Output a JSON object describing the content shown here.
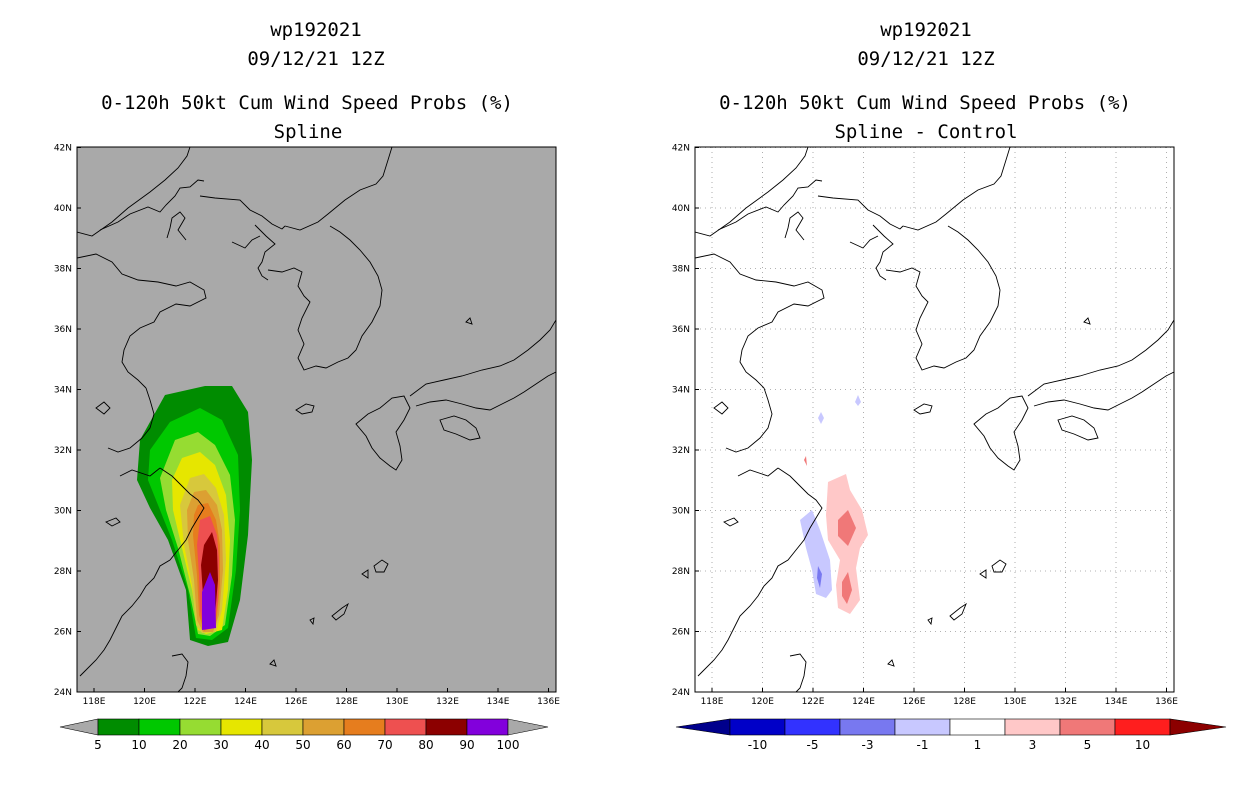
{
  "left_panel": {
    "title_lines": [
      "wp192021",
      "09/12/21 12Z",
      "0-120h 50kt Cum Wind Speed Probs (%)",
      "Spline"
    ],
    "map_background": "#a9a9a9",
    "colorbar": {
      "colors": [
        "#008c00",
        "#00c800",
        "#96dc32",
        "#e6e600",
        "#d7c83c",
        "#dca032",
        "#e67d1e",
        "#ee5050",
        "#8c0000",
        "#8200dc"
      ],
      "end_color": "#a9a9a9",
      "labels": [
        "5",
        "10",
        "20",
        "30",
        "40",
        "50",
        "60",
        "70",
        "80",
        "90",
        "100"
      ]
    }
  },
  "right_panel": {
    "title_lines": [
      "wp192021",
      "09/12/21 12Z",
      "0-120h 50kt Cum Wind Speed Probs (%)",
      "Spline - Control"
    ],
    "map_background": "#ffffff",
    "colorbar": {
      "colors": [
        "#0000c8",
        "#3232ff",
        "#7878f0",
        "#c8c8ff",
        "#ffffff",
        "#ffc8c8",
        "#f07878",
        "#ff1e1e"
      ],
      "end_left": "#00008c",
      "end_right": "#8c0000",
      "labels": [
        "-10",
        "-5",
        "-3",
        "-1",
        "1",
        "3",
        "5",
        "10"
      ]
    }
  },
  "axes": {
    "lon_labels": [
      "118E",
      "120E",
      "122E",
      "124E",
      "126E",
      "128E",
      "130E",
      "132E",
      "134E",
      "136E"
    ],
    "lat_labels": [
      "24N",
      "26N",
      "28N",
      "30N",
      "32N",
      "34N",
      "36N",
      "38N",
      "40N",
      "42N"
    ]
  },
  "colors": {
    "coast": "#000000",
    "grid": "#9a9a9a",
    "frame": "#000000"
  }
}
